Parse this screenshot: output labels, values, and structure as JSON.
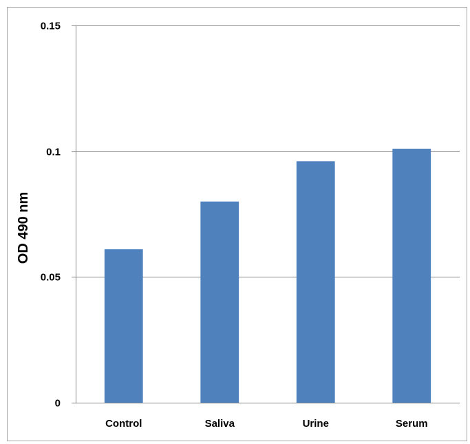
{
  "chart_data": {
    "type": "bar",
    "title": "",
    "xlabel": "",
    "ylabel": "OD 490 nm",
    "categories": [
      "Control",
      "Saliva",
      "Urine",
      "Serum"
    ],
    "values": [
      0.061,
      0.08,
      0.096,
      0.101
    ],
    "ylim": [
      0,
      0.15
    ],
    "yticks": [
      0,
      0.05,
      0.1,
      0.15
    ],
    "ytick_labels": [
      "0",
      "0.05",
      "0.1",
      "0.15"
    ],
    "grid": true,
    "legend": "none",
    "bar_color": "#4f81bd",
    "grid_color": "#868686"
  }
}
